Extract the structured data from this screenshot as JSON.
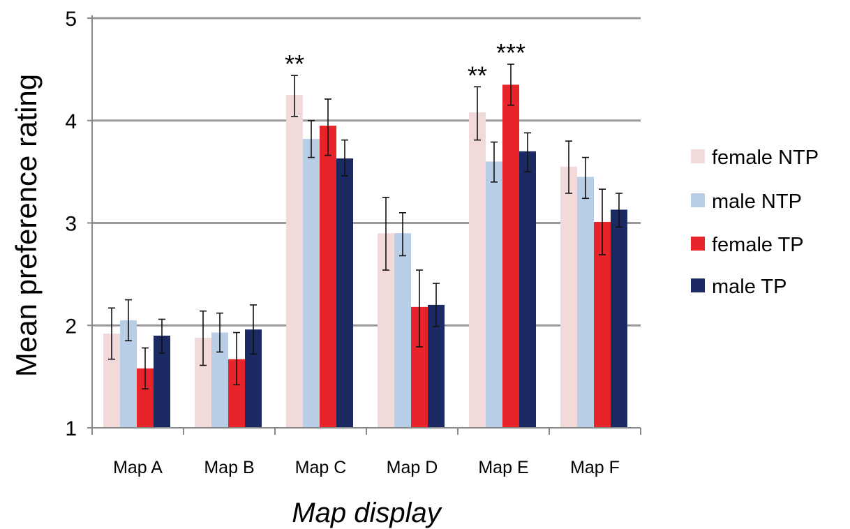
{
  "chart_data": {
    "type": "bar",
    "xlabel": "Map display",
    "ylabel": "Mean preference rating",
    "ylim": [
      1,
      5
    ],
    "yticks": [
      1,
      2,
      3,
      4,
      5
    ],
    "grid": "horizontal",
    "legend_position": "right",
    "categories": [
      "Map A",
      "Map B",
      "Map C",
      "Map D",
      "Map E",
      "Map F"
    ],
    "series": [
      {
        "name": "female NTP",
        "color": "#f2dada",
        "values": [
          1.92,
          1.88,
          4.25,
          2.9,
          4.08,
          3.55
        ],
        "err_low": [
          1.67,
          1.61,
          4.04,
          2.54,
          3.81,
          3.29
        ],
        "err_high": [
          2.17,
          2.14,
          4.44,
          3.25,
          4.33,
          3.8
        ]
      },
      {
        "name": "male NTP",
        "color": "#b8cde6",
        "values": [
          2.05,
          1.93,
          3.82,
          2.9,
          3.6,
          3.45
        ],
        "err_low": [
          1.85,
          1.74,
          3.64,
          2.68,
          3.4,
          3.24
        ],
        "err_high": [
          2.25,
          2.12,
          4.0,
          3.1,
          3.79,
          3.64
        ]
      },
      {
        "name": "female TP",
        "color": "#e8242b",
        "values": [
          1.58,
          1.67,
          3.95,
          2.18,
          4.35,
          3.01
        ],
        "err_low": [
          1.38,
          1.42,
          3.66,
          1.79,
          4.15,
          2.69
        ],
        "err_high": [
          1.78,
          1.93,
          4.21,
          2.54,
          4.55,
          3.33
        ]
      },
      {
        "name": "male TP",
        "color": "#1c2a64",
        "values": [
          1.9,
          1.96,
          3.63,
          2.2,
          3.7,
          3.13
        ],
        "err_low": [
          1.73,
          1.72,
          3.46,
          1.99,
          3.5,
          2.96
        ],
        "err_high": [
          2.06,
          2.2,
          3.81,
          2.41,
          3.88,
          3.29
        ]
      }
    ],
    "annotations": [
      {
        "text": "**",
        "category": "Map C",
        "series": "female NTP"
      },
      {
        "text": "**",
        "category": "Map E",
        "series": "female NTP"
      },
      {
        "text": "***",
        "category": "Map E",
        "series": "female TP"
      }
    ]
  }
}
